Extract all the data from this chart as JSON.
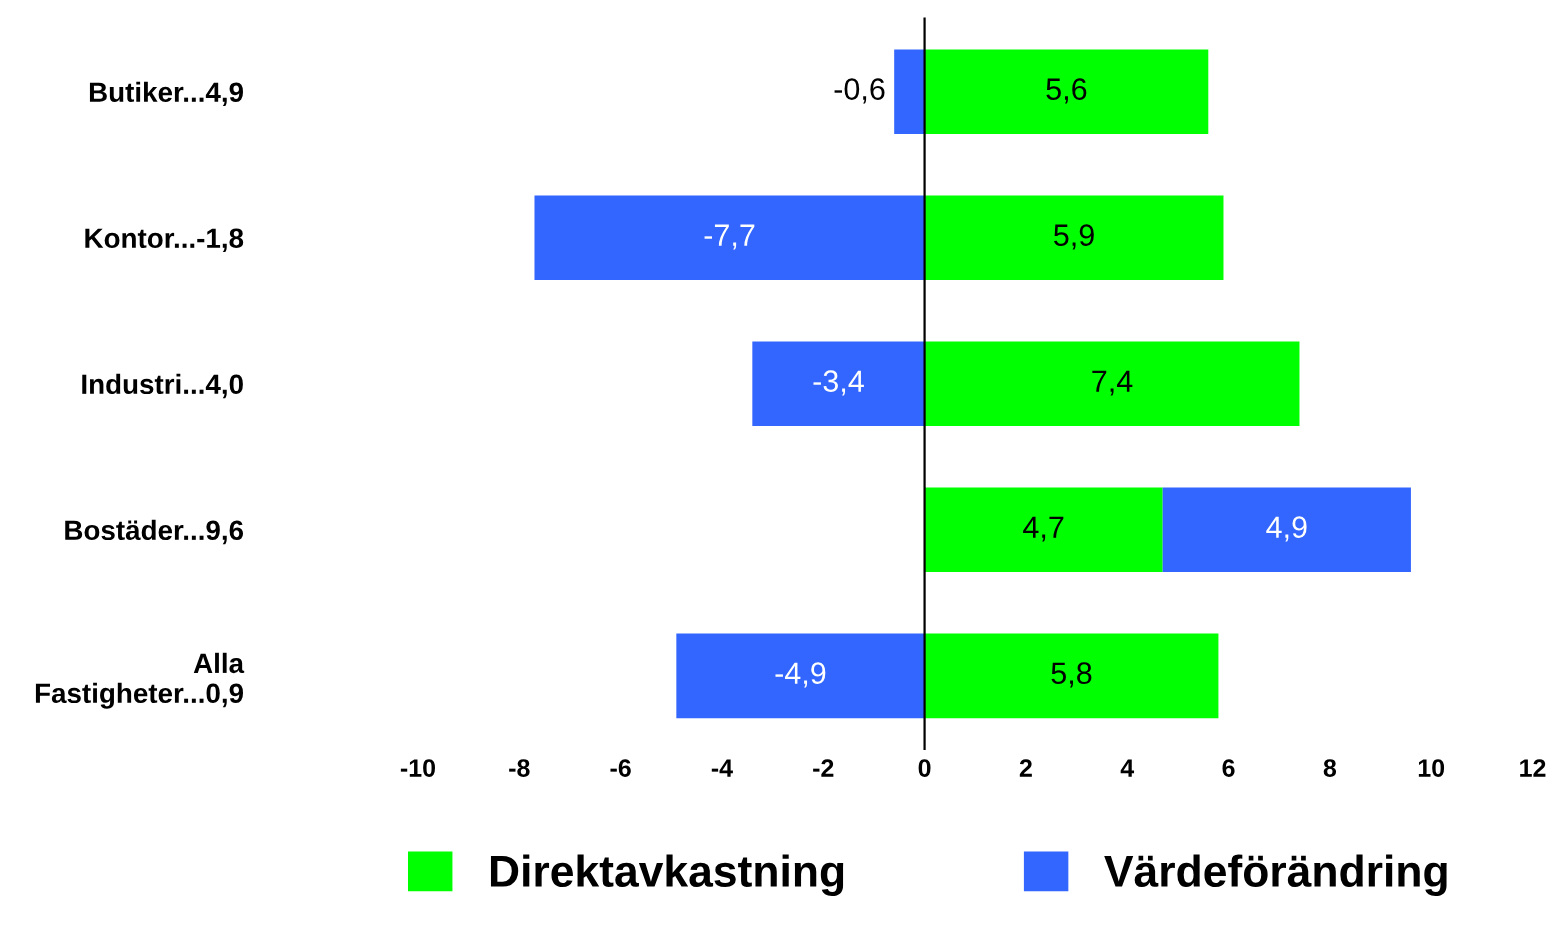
{
  "chart_data": {
    "type": "bar",
    "orientation": "horizontal",
    "stacked": true,
    "categories": [
      "Butiker...4,9",
      "Kontor...-1,8",
      "Industri...4,0",
      "Bostäder...9,6",
      "Alla\nFastigheter...0,9"
    ],
    "series": [
      {
        "name": "Direktavkastning",
        "color": "#00ff00",
        "values": [
          5.6,
          5.9,
          7.4,
          4.7,
          5.8
        ],
        "value_labels": [
          "5,6",
          "5,9",
          "7,4",
          "4,7",
          "5,8"
        ]
      },
      {
        "name": "Värdeförändring",
        "color": "#3366ff",
        "values": [
          -0.6,
          -7.7,
          -3.4,
          4.9,
          -4.9
        ],
        "value_labels": [
          "-0,6",
          "-7,7",
          "-3,4",
          "4,9",
          "-4,9"
        ]
      }
    ],
    "xlim": [
      -10,
      12
    ],
    "xticks": [
      -10,
      -8,
      -6,
      -4,
      -2,
      0,
      2,
      4,
      6,
      8,
      10,
      12
    ],
    "legend": "bottom"
  }
}
